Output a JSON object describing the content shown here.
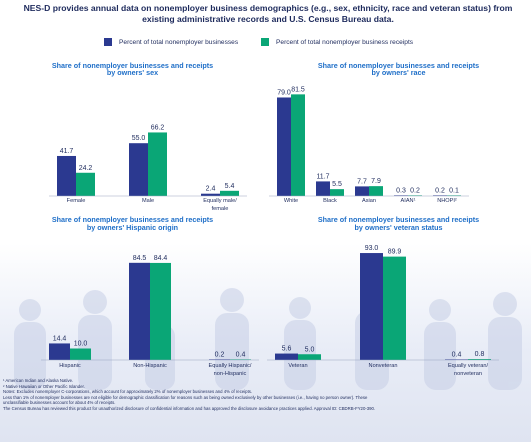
{
  "headline": "NES-D provides annual data on nonemployer business demographics (e.g., sex, ethnicity, race and veteran status) from existing administrative records and U.S. Census Bureau data.",
  "colors": {
    "businesses": "#2b3990",
    "receipts": "#0aa676",
    "title": "#1f6fc8",
    "text": "#1d2a5c"
  },
  "legend": {
    "businesses_label": "Percent of total nonemployer businesses",
    "receipts_label": "Percent of total nonemployer business receipts"
  },
  "chart_data": [
    {
      "type": "bar",
      "title_lines": [
        "Share of nonemployer businesses and receipts",
        "by owners' sex"
      ],
      "categories": [
        [
          "Female"
        ],
        [
          "Male"
        ],
        [
          "Equally male/",
          "female"
        ]
      ],
      "series": [
        {
          "name": "Percent of total nonemployer businesses",
          "values": [
            41.7,
            55.0,
            2.4
          ]
        },
        {
          "name": "Percent of total nonemployer business receipts",
          "values": [
            24.2,
            66.2,
            5.4
          ]
        }
      ]
    },
    {
      "type": "bar",
      "title_lines": [
        "Share of nonemployer businesses and receipts",
        "by owners' race"
      ],
      "categories": [
        [
          "White"
        ],
        [
          "Black"
        ],
        [
          "Asian"
        ],
        [
          "AIAN¹"
        ],
        [
          "NHOPI²"
        ]
      ],
      "series": [
        {
          "name": "Percent of total nonemployer businesses",
          "values": [
            79.0,
            11.7,
            7.7,
            0.3,
            0.2
          ]
        },
        {
          "name": "Percent of total nonemployer business receipts",
          "values": [
            81.5,
            5.5,
            7.9,
            0.2,
            0.1
          ]
        }
      ]
    },
    {
      "type": "bar",
      "title_lines": [
        "Share of nonemployer businesses and receipts",
        "by owners' Hispanic origin"
      ],
      "categories": [
        [
          "Hispanic"
        ],
        [
          "Non-Hispanic"
        ],
        [
          "Equally Hispanic/",
          "non-Hispanic"
        ]
      ],
      "series": [
        {
          "name": "Percent of total nonemployer businesses",
          "values": [
            14.4,
            84.5,
            0.2
          ]
        },
        {
          "name": "Percent of total nonemployer business receipts",
          "values": [
            10.0,
            84.4,
            0.4
          ]
        }
      ]
    },
    {
      "type": "bar",
      "title_lines": [
        "Share of nonemployer businesses and receipts",
        "by owners' veteran status"
      ],
      "categories": [
        [
          "Veteran"
        ],
        [
          "Nonveteran"
        ],
        [
          "Equally veteran/",
          "nonveteran"
        ]
      ],
      "series": [
        {
          "name": "Percent of total nonemployer businesses",
          "values": [
            5.6,
            93.0,
            0.4
          ]
        },
        {
          "name": "Percent of total nonemployer business receipts",
          "values": [
            5.0,
            89.9,
            0.8
          ]
        }
      ]
    }
  ],
  "notes": [
    "¹ American Indian and Alaska Native.",
    "² Native Hawaiian or Other Pacific Islander.",
    "Notes: Excludes nonemployer C-corporations, which account for approximately 2% of nonemployer businesses and 4% of receipts.",
    "Less than 1% of nonemployer businesses are not eligible for demographic classification for reasons such as being owned exclusively by other businesses (i.e., having no person owner). These",
    "unclassifiable businesses account for about 4% of receipts.",
    "The Census Bureau has reviewed this product for unauthorized disclosure of confidential information and has approved the disclosure avoidance practices applied. Approval ID: CBDRB-FY20-390."
  ]
}
